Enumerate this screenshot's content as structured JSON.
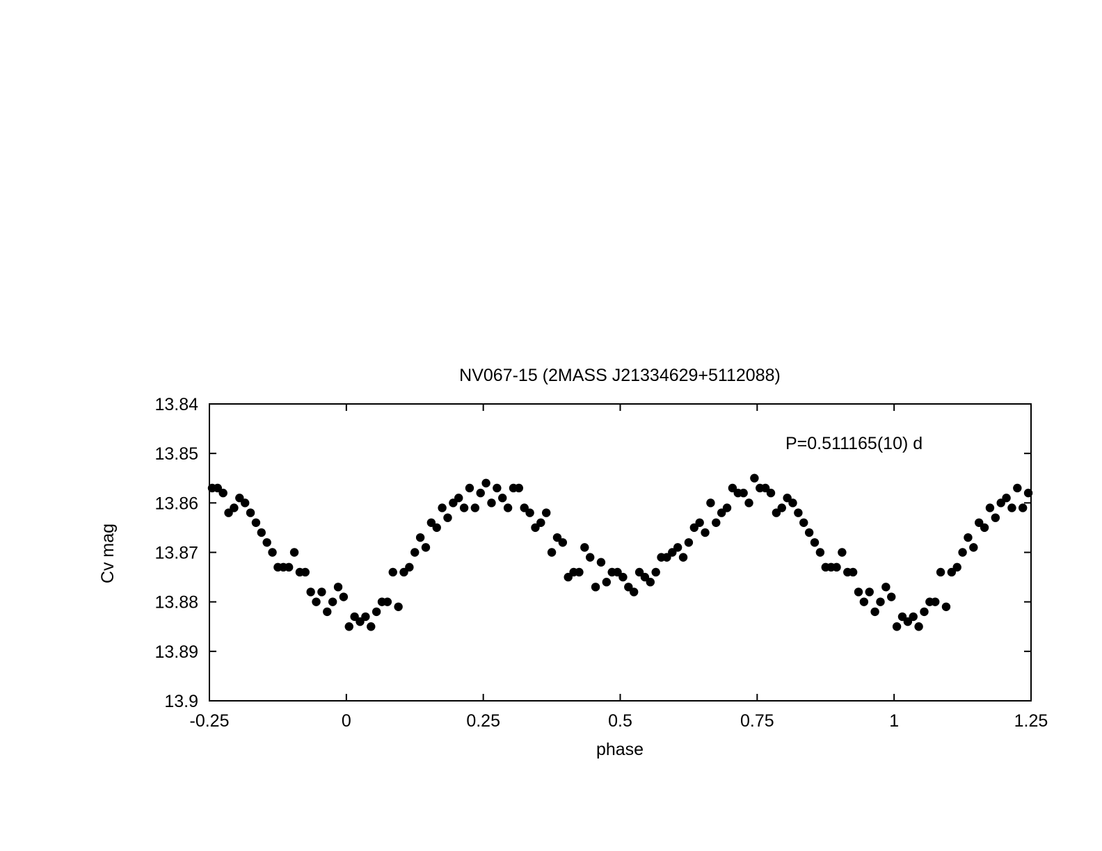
{
  "chart_data": {
    "type": "scatter",
    "title": "NV067-15 (2MASS J21334629+5112088)",
    "xlabel": "phase",
    "ylabel": "Cv mag",
    "annotation": "P=0.511165(10) d",
    "xlim": [
      -0.25,
      1.25
    ],
    "ylim": [
      13.84,
      13.9
    ],
    "y_inverted": true,
    "grid": false,
    "marker_color": "#000000",
    "x_ticks": [
      -0.25,
      0,
      0.25,
      0.5,
      0.75,
      1,
      1.25
    ],
    "x_tick_labels": [
      "-0.25",
      "0",
      "0.25",
      "0.5",
      "0.75",
      "1",
      "1.25"
    ],
    "y_ticks": [
      13.84,
      13.85,
      13.86,
      13.87,
      13.88,
      13.89,
      13.9
    ],
    "y_tick_labels": [
      "13.84",
      "13.85",
      "13.86",
      "13.87",
      "13.88",
      "13.89",
      "13.9"
    ],
    "series": [
      {
        "x": [
          -0.245,
          -0.235,
          -0.225,
          -0.215,
          -0.205,
          -0.195,
          -0.185,
          -0.175,
          -0.165,
          -0.155,
          -0.145,
          -0.135,
          -0.125,
          -0.115,
          -0.105,
          -0.095,
          -0.085,
          -0.075,
          -0.065,
          -0.055,
          -0.045,
          -0.035,
          -0.025,
          -0.015,
          -0.005,
          0.005,
          0.015,
          0.025,
          0.035,
          0.045,
          0.055,
          0.065,
          0.075,
          0.085,
          0.095,
          0.105,
          0.115,
          0.125,
          0.135,
          0.145,
          0.155,
          0.165,
          0.175,
          0.185,
          0.195,
          0.205,
          0.215,
          0.225,
          0.235,
          0.245,
          0.255,
          0.265,
          0.275,
          0.285,
          0.295,
          0.305,
          0.315,
          0.325,
          0.335,
          0.345,
          0.355,
          0.365,
          0.375,
          0.385,
          0.395,
          0.405,
          0.415,
          0.425,
          0.435,
          0.445,
          0.455,
          0.465,
          0.475,
          0.485,
          0.495,
          0.505,
          0.515,
          0.525,
          0.535,
          0.545,
          0.555,
          0.565,
          0.575,
          0.585,
          0.595,
          0.605,
          0.615,
          0.625,
          0.635,
          0.645,
          0.655,
          0.665,
          0.675,
          0.685,
          0.695,
          0.705,
          0.715,
          0.725,
          0.735,
          0.745,
          0.755,
          0.765,
          0.775,
          0.785,
          0.795,
          0.805,
          0.815,
          0.825,
          0.835,
          0.845,
          0.855,
          0.865,
          0.875,
          0.885,
          0.895,
          0.905,
          0.915,
          0.925,
          0.935,
          0.945,
          0.955,
          0.965,
          0.975,
          0.985,
          0.995,
          1.005,
          1.015,
          1.025,
          1.035,
          1.045,
          1.055,
          1.065,
          1.075,
          1.085,
          1.095,
          1.105,
          1.115,
          1.125,
          1.135,
          1.145,
          1.155,
          1.165,
          1.175,
          1.185,
          1.195,
          1.205,
          1.215,
          1.225,
          1.235,
          1.245
        ],
        "y": [
          13.857,
          13.857,
          13.858,
          13.862,
          13.861,
          13.859,
          13.86,
          13.862,
          13.864,
          13.866,
          13.868,
          13.87,
          13.873,
          13.873,
          13.873,
          13.87,
          13.874,
          13.874,
          13.878,
          13.88,
          13.878,
          13.882,
          13.88,
          13.877,
          13.879,
          13.885,
          13.883,
          13.884,
          13.883,
          13.885,
          13.882,
          13.88,
          13.88,
          13.874,
          13.881,
          13.874,
          13.873,
          13.87,
          13.867,
          13.869,
          13.864,
          13.865,
          13.861,
          13.863,
          13.86,
          13.859,
          13.861,
          13.857,
          13.861,
          13.858,
          13.856,
          13.86,
          13.857,
          13.859,
          13.861,
          13.857,
          13.857,
          13.861,
          13.862,
          13.865,
          13.864,
          13.862,
          13.87,
          13.867,
          13.868,
          13.875,
          13.874,
          13.874,
          13.869,
          13.871,
          13.877,
          13.872,
          13.876,
          13.874,
          13.874,
          13.875,
          13.877,
          13.878,
          13.874,
          13.875,
          13.876,
          13.874,
          13.871,
          13.871,
          13.87,
          13.869,
          13.871,
          13.868,
          13.865,
          13.864,
          13.866,
          13.86,
          13.864,
          13.862,
          13.861,
          13.857,
          13.858,
          13.858,
          13.86,
          13.855,
          13.857,
          13.857,
          13.858,
          13.862,
          13.861,
          13.859,
          13.86,
          13.862,
          13.864,
          13.866,
          13.868,
          13.87,
          13.873,
          13.873,
          13.873,
          13.87,
          13.874,
          13.874,
          13.878,
          13.88,
          13.878,
          13.882,
          13.88,
          13.877,
          13.879,
          13.885,
          13.883,
          13.884,
          13.883,
          13.885,
          13.882,
          13.88,
          13.88,
          13.874,
          13.881,
          13.874,
          13.873,
          13.87,
          13.867,
          13.869,
          13.864,
          13.865,
          13.861,
          13.863,
          13.86,
          13.859,
          13.861,
          13.857,
          13.861,
          13.858
        ]
      }
    ]
  }
}
